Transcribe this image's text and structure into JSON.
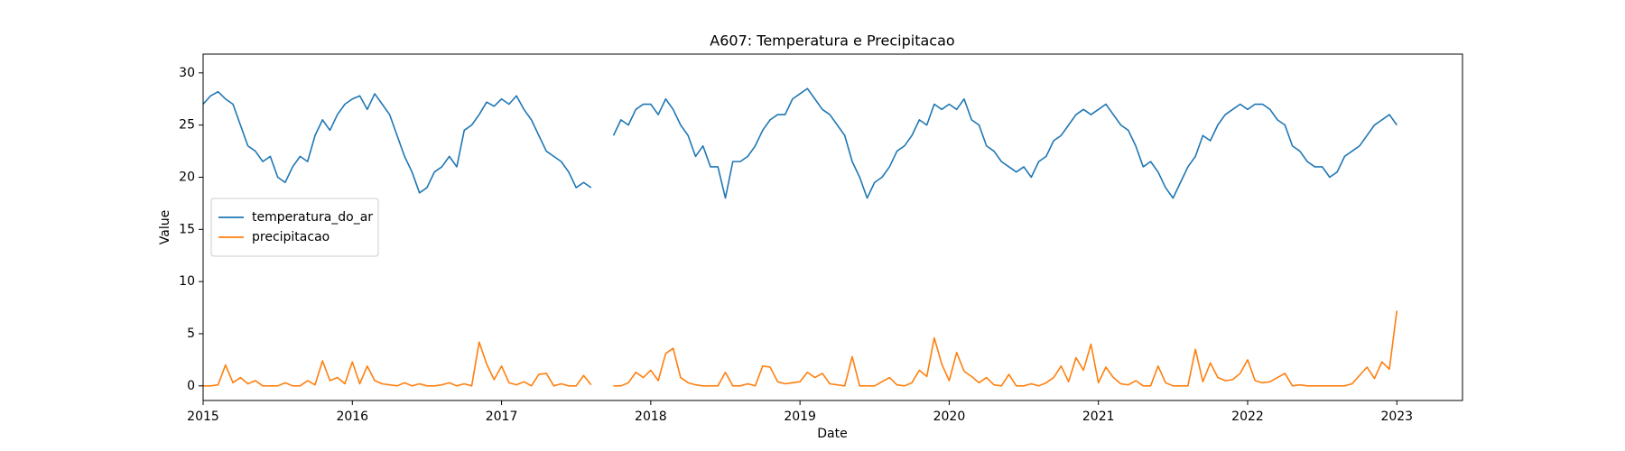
{
  "chart_data": {
    "type": "line",
    "title": "A607: Temperatura e Precipitacao",
    "x_label": "Date",
    "y_label": "Value",
    "x": [
      2015,
      2015.05,
      2015.1,
      2015.15,
      2015.2,
      2015.25,
      2015.3,
      2015.35,
      2015.4,
      2015.45,
      2015.5,
      2015.55,
      2015.6,
      2015.65,
      2015.7,
      2015.75,
      2015.8,
      2015.85,
      2015.9,
      2015.95,
      2016,
      2016.05,
      2016.1,
      2016.15,
      2016.2,
      2016.25,
      2016.3,
      2016.35,
      2016.4,
      2016.45,
      2016.5,
      2016.55,
      2016.6,
      2016.65,
      2016.7,
      2016.75,
      2016.8,
      2016.85,
      2016.9,
      2016.95,
      2017,
      2017.05,
      2017.1,
      2017.15,
      2017.2,
      2017.25,
      2017.3,
      2017.35,
      2017.4,
      2017.45,
      2017.5,
      2017.55,
      2017.6,
      2017.65,
      2017.7,
      2017.75,
      2017.8,
      2017.85,
      2017.9,
      2017.95,
      2018,
      2018.05,
      2018.1,
      2018.15,
      2018.2,
      2018.25,
      2018.3,
      2018.35,
      2018.4,
      2018.45,
      2018.5,
      2018.55,
      2018.6,
      2018.65,
      2018.7,
      2018.75,
      2018.8,
      2018.85,
      2018.9,
      2018.95,
      2019,
      2019.05,
      2019.1,
      2019.15,
      2019.2,
      2019.25,
      2019.3,
      2019.35,
      2019.4,
      2019.45,
      2019.5,
      2019.55,
      2019.6,
      2019.65,
      2019.7,
      2019.75,
      2019.8,
      2019.85,
      2019.9,
      2019.95,
      2020,
      2020.05,
      2020.1,
      2020.15,
      2020.2,
      2020.25,
      2020.3,
      2020.35,
      2020.4,
      2020.45,
      2020.5,
      2020.55,
      2020.6,
      2020.65,
      2020.7,
      2020.75,
      2020.8,
      2020.85,
      2020.9,
      2020.95,
      2021,
      2021.05,
      2021.1,
      2021.15,
      2021.2,
      2021.25,
      2021.3,
      2021.35,
      2021.4,
      2021.45,
      2021.5,
      2021.55,
      2021.6,
      2021.65,
      2021.7,
      2021.75,
      2021.8,
      2021.85,
      2021.9,
      2021.95,
      2022,
      2022.05,
      2022.1,
      2022.15,
      2022.2,
      2022.25,
      2022.3,
      2022.35,
      2022.4,
      2022.45,
      2022.5,
      2022.55,
      2022.6,
      2022.65,
      2022.7,
      2022.75,
      2022.8,
      2022.85,
      2022.9,
      2022.95,
      2023
    ],
    "series": [
      {
        "name": "temperatura_do_ar",
        "color": "#1f77b4",
        "values": [
          27,
          27.8,
          28.2,
          27.5,
          27,
          25,
          23,
          22.5,
          21.5,
          22,
          20,
          19.5,
          21,
          22,
          21.5,
          24,
          25.5,
          24.5,
          26,
          27,
          27.5,
          27.8,
          26.5,
          28,
          27,
          26,
          24,
          22,
          20.5,
          18.5,
          19,
          20.5,
          21,
          22,
          21,
          24.5,
          25,
          26,
          27.2,
          26.8,
          27.5,
          27,
          27.8,
          26.5,
          25.5,
          24,
          22.5,
          22,
          21.5,
          20.5,
          19,
          19.5,
          19,
          null,
          null,
          24,
          25.5,
          25,
          26.5,
          27,
          27,
          26,
          27.5,
          26.5,
          25,
          24,
          22,
          23,
          21,
          21,
          18,
          21.5,
          21.5,
          22,
          23,
          24.5,
          25.5,
          26,
          26,
          27.5,
          28,
          28.5,
          27.5,
          26.5,
          26,
          25,
          24,
          21.5,
          20,
          18,
          19.5,
          20,
          21,
          22.5,
          23,
          24,
          25.5,
          25,
          27,
          26.5,
          27,
          26.5,
          27.5,
          25.5,
          25,
          23,
          22.5,
          21.5,
          21,
          20.5,
          21,
          20,
          21.5,
          22,
          23.5,
          24,
          25,
          26,
          26.5,
          26,
          26.5,
          27,
          26,
          25,
          24.5,
          23,
          21,
          21.5,
          20.5,
          19,
          18,
          19.5,
          21,
          22,
          24,
          23.5,
          25,
          26,
          26.5,
          27,
          26.5,
          27,
          27,
          26.5,
          25.5,
          25,
          23,
          22.5,
          21.5,
          21,
          21,
          20,
          20.5,
          22,
          22.5,
          23,
          24,
          25,
          25.5,
          26,
          25
        ]
      },
      {
        "name": "precipitacao",
        "color": "#ff7f0e",
        "values": [
          0,
          0,
          0.1,
          2.0,
          0.3,
          0.8,
          0.2,
          0.5,
          0,
          0,
          0,
          0.3,
          0,
          0,
          0.5,
          0.1,
          2.4,
          0.5,
          0.8,
          0.2,
          2.3,
          0.2,
          1.9,
          0.5,
          0.2,
          0.1,
          0,
          0.3,
          0,
          0.2,
          0,
          0,
          0.1,
          0.3,
          0,
          0.2,
          0,
          4.2,
          2.1,
          0.6,
          1.9,
          0.3,
          0.1,
          0.4,
          0,
          1.1,
          1.2,
          0,
          0.2,
          0,
          0,
          1.0,
          0.1,
          null,
          null,
          0,
          0,
          0.3,
          1.3,
          0.8,
          1.5,
          0.5,
          3.1,
          3.6,
          0.8,
          0.3,
          0.1,
          0,
          0,
          0,
          1.3,
          0,
          0,
          0.2,
          0,
          1.9,
          1.8,
          0.4,
          0.2,
          0.3,
          0.4,
          1.3,
          0.8,
          1.2,
          0.2,
          0.1,
          0,
          2.8,
          0,
          0,
          0,
          0.4,
          0.8,
          0.1,
          0,
          0.3,
          1.5,
          0.9,
          4.6,
          2.1,
          0.5,
          3.2,
          1.4,
          0.9,
          0.3,
          0.8,
          0.1,
          0,
          1.1,
          0,
          0,
          0.2,
          0,
          0.3,
          0.8,
          1.9,
          0.4,
          2.7,
          1.5,
          4.0,
          0.3,
          1.8,
          0.8,
          0.2,
          0.1,
          0.5,
          0,
          0,
          1.9,
          0.3,
          0,
          0,
          0,
          3.5,
          0.4,
          2.2,
          0.8,
          0.5,
          0.6,
          1.2,
          2.5,
          0.5,
          0.3,
          0.4,
          0.8,
          1.2,
          0,
          0.1,
          0,
          0,
          0,
          0,
          0,
          0,
          0.2,
          1.0,
          1.8,
          0.7,
          2.3,
          1.6,
          7.2
        ]
      }
    ],
    "xlim": [
      2015,
      2023.44
    ],
    "xticks": [
      2015,
      2016,
      2017,
      2018,
      2019,
      2020,
      2021,
      2022,
      2023
    ],
    "ylim": [
      -1.4,
      31.8
    ],
    "yticks": [
      0,
      5,
      10,
      15,
      20,
      25,
      30
    ],
    "legend": "center left",
    "grid": false
  }
}
